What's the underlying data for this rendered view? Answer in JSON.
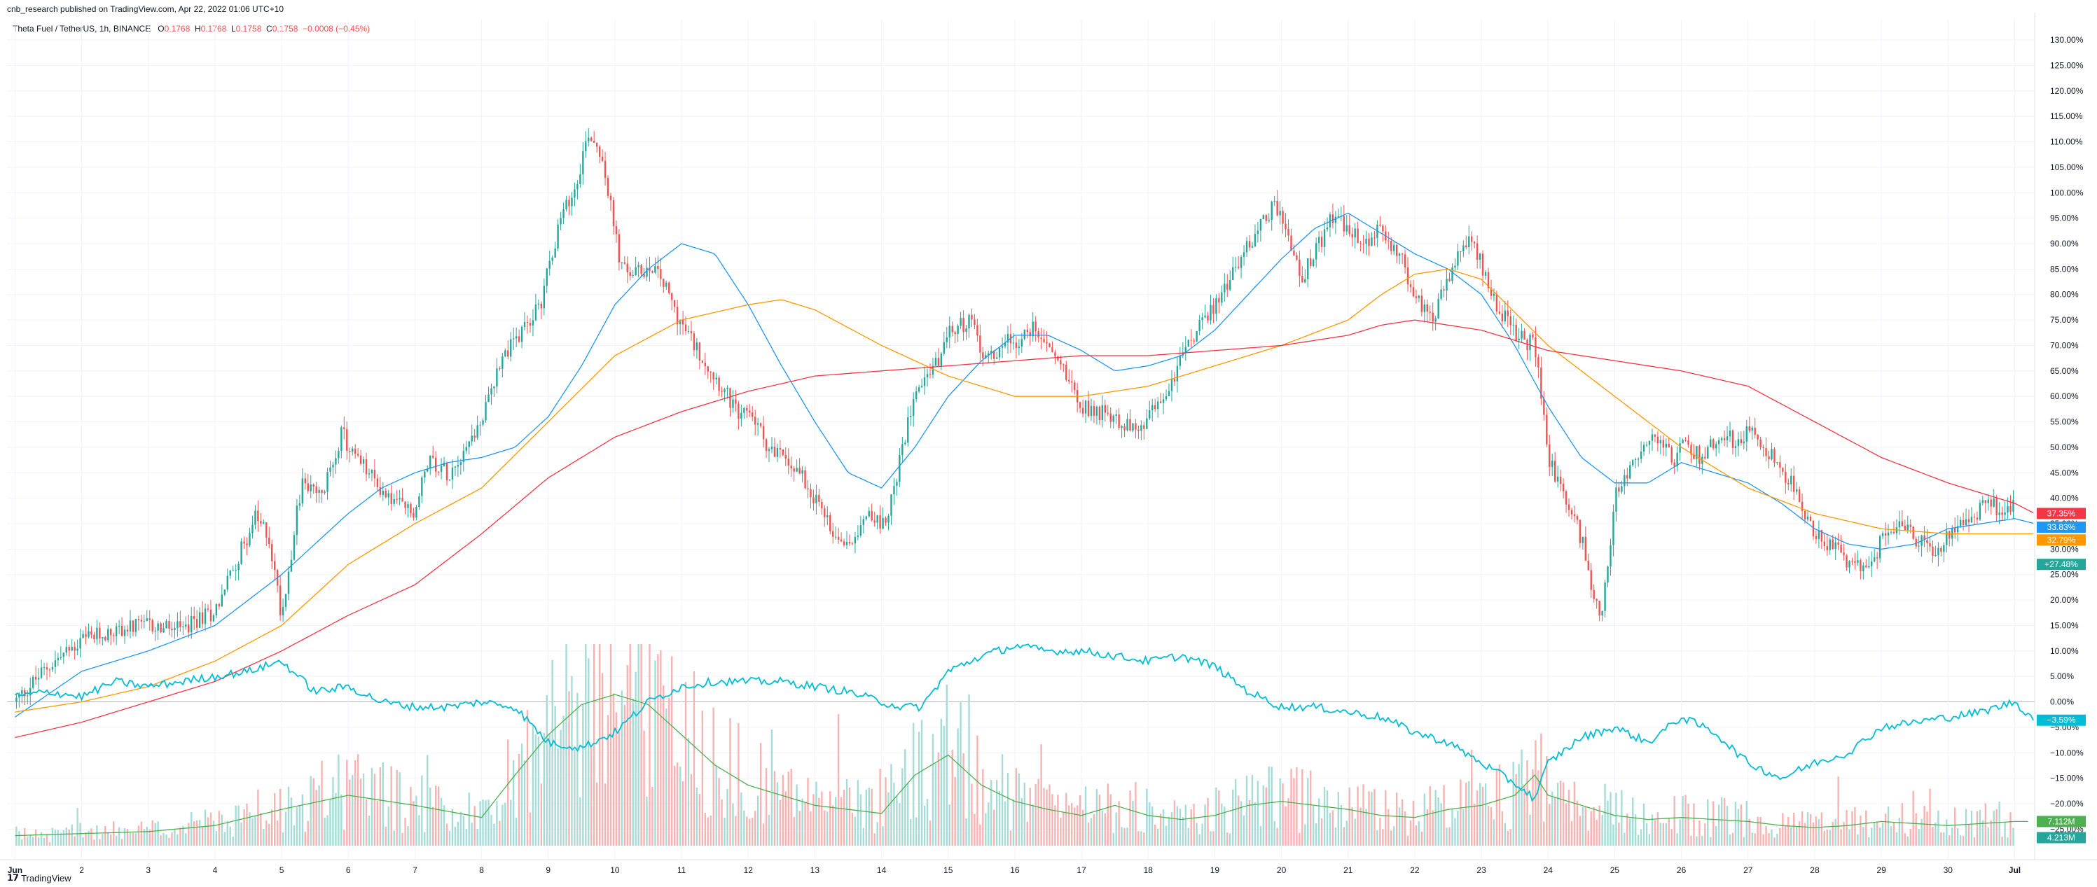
{
  "header": {
    "publisher": "cnb_research published on TradingView.com, Apr 22, 2022 01:06 UTC+10"
  },
  "legend": {
    "symbol": "Theta Fuel / TetherUS, 1h, BINANCE",
    "o_label": "O",
    "o_value": "0.1768",
    "h_label": "H",
    "h_value": "0.1768",
    "l_label": "L",
    "l_value": "0.1758",
    "c_label": "C",
    "c_value": "0.1758",
    "change": "−0.0008 (−0.45%)"
  },
  "footer": {
    "brand": "TradingView"
  },
  "colors": {
    "up": "#26a69a",
    "down": "#ef5350",
    "ma_fast": "#2196f3",
    "ma_mid": "#ff9800",
    "ma_slow": "#f23645",
    "compare": "#00bcd4",
    "vol_ma": "#4caf50",
    "grid": "#f0f3fa",
    "axis_text": "#131722"
  },
  "chart_data": {
    "type": "line",
    "title": "",
    "y_axis": {
      "unit": "percent",
      "ylim": [
        -31,
        134
      ],
      "ticks": [
        "130.00%",
        "125.00%",
        "120.00%",
        "115.00%",
        "110.00%",
        "105.00%",
        "100.00%",
        "95.00%",
        "90.00%",
        "85.00%",
        "80.00%",
        "75.00%",
        "70.00%",
        "65.00%",
        "60.00%",
        "55.00%",
        "50.00%",
        "45.00%",
        "40.00%",
        "35.00%",
        "30.00%",
        "25.00%",
        "20.00%",
        "15.00%",
        "10.00%",
        "5.00%",
        "0.00%",
        "−5.00%",
        "−10.00%",
        "−15.00%",
        "−20.00%",
        "−25.00%"
      ],
      "tick_values": [
        130,
        125,
        120,
        115,
        110,
        105,
        100,
        95,
        90,
        85,
        80,
        75,
        70,
        65,
        60,
        55,
        50,
        45,
        40,
        35,
        30,
        25,
        20,
        15,
        10,
        5,
        0,
        -5,
        -10,
        -15,
        -20,
        -25
      ]
    },
    "x_axis": {
      "labels": [
        "Jun",
        "2",
        "3",
        "4",
        "5",
        "6",
        "7",
        "8",
        "9",
        "10",
        "11",
        "12",
        "13",
        "14",
        "15",
        "16",
        "17",
        "18",
        "19",
        "20",
        "21",
        "22",
        "23",
        "24",
        "25",
        "26",
        "27",
        "28",
        "29",
        "30",
        "Jul"
      ],
      "label_days": [
        0,
        1,
        2,
        3,
        4,
        5,
        6,
        7,
        8,
        9,
        10,
        11,
        12,
        13,
        14,
        15,
        16,
        17,
        18,
        19,
        20,
        21,
        22,
        23,
        24,
        25,
        26,
        27,
        28,
        29,
        30
      ],
      "xlim": [
        -0.12,
        30.3
      ]
    },
    "price_anchors": {
      "day": [
        0,
        0.5,
        1,
        1.5,
        2,
        2.5,
        3,
        3.3,
        3.6,
        3.8,
        4,
        4.3,
        4.6,
        4.9,
        5,
        5.3,
        5.6,
        6,
        6.2,
        6.5,
        7,
        7.3,
        7.6,
        7.9,
        8,
        8.2,
        8.4,
        8.6,
        8.8,
        9,
        9.1,
        9.3,
        9.6,
        9.9,
        10,
        10.3,
        10.6,
        10.9,
        11,
        11.3,
        11.5,
        11.8,
        12,
        12.3,
        12.5,
        12.8,
        13,
        13.2,
        13.5,
        13.8,
        14,
        14.3,
        14.6,
        14.9,
        15,
        15.3,
        15.6,
        15.9,
        16,
        16.3,
        16.6,
        16.9,
        17,
        17.3,
        17.5,
        17.8,
        18,
        18.3,
        18.6,
        18.9,
        19,
        19.3,
        19.5,
        19.8,
        20,
        20.3,
        20.5,
        20.8,
        21,
        21.3,
        21.5,
        21.8,
        22,
        22.2,
        22.5,
        22.8,
        22.9,
        23,
        23.2,
        23.5,
        23.8,
        24,
        24.3,
        24.6,
        24.9,
        25,
        25.3,
        25.6,
        25.9,
        26,
        26.3,
        26.6,
        26.9,
        27,
        27.3,
        27.6,
        27.9,
        28,
        28.3,
        28.6,
        28.9,
        29,
        29.3,
        29.6,
        29.9,
        30
      ],
      "pct": [
        0,
        7,
        12,
        14,
        15,
        14,
        18,
        27,
        36,
        33,
        17,
        43,
        40,
        53,
        50,
        45,
        40,
        37,
        48,
        45,
        55,
        68,
        72,
        79,
        86,
        95,
        101,
        112,
        108,
        92,
        85,
        84,
        86,
        77,
        74,
        68,
        62,
        55,
        58,
        50,
        48,
        45,
        40,
        33,
        31,
        38,
        34,
        42,
        62,
        66,
        72,
        75,
        67,
        72,
        70,
        74,
        68,
        62,
        58,
        57,
        55,
        53,
        56,
        61,
        68,
        74,
        78,
        85,
        92,
        98,
        95,
        83,
        88,
        96,
        92,
        90,
        93,
        87,
        79,
        76,
        83,
        91,
        86,
        79,
        72,
        70,
        60,
        48,
        42,
        32,
        15,
        40,
        48,
        52,
        47,
        51,
        48,
        53,
        50,
        55,
        49,
        44,
        36,
        33,
        30,
        26,
        28,
        32,
        34,
        31,
        29,
        33,
        36,
        39,
        37,
        40,
        39,
        37,
        33,
        29,
        27
      ]
    },
    "series": [
      {
        "name": "",
        "role": "MA fast",
        "color": "#2196f3",
        "last_label": "33.83%",
        "day": [
          0,
          1,
          2,
          3,
          3.5,
          4,
          4.5,
          5,
          5.5,
          6,
          6.5,
          7,
          7.5,
          8,
          8.5,
          9,
          9.5,
          10,
          10.5,
          11,
          11.5,
          12,
          12.5,
          13,
          13.5,
          14,
          14.5,
          15,
          15.5,
          16,
          16.5,
          17,
          17.5,
          18,
          18.5,
          19,
          19.5,
          20,
          20.5,
          21,
          21.5,
          22,
          22.5,
          23,
          23.5,
          24,
          24.5,
          25,
          25.5,
          26,
          26.5,
          27,
          27.5,
          28,
          28.5,
          29,
          29.5,
          30,
          30.3
        ],
        "pct": [
          -3,
          6,
          10,
          15,
          20,
          25,
          31,
          37,
          42,
          45,
          47,
          48,
          50,
          56,
          66,
          78,
          85,
          90,
          88,
          78,
          66,
          55,
          45,
          42,
          50,
          60,
          67,
          72,
          72,
          69,
          65,
          66,
          68,
          73,
          80,
          87,
          93,
          96,
          92,
          88,
          85,
          80,
          70,
          58,
          48,
          43,
          43,
          47,
          45,
          43,
          39,
          34,
          31,
          30,
          31,
          34,
          35,
          36,
          35
        ]
      },
      {
        "name": "",
        "role": "MA mid",
        "color": "#ff9800",
        "last_label": "32.79%",
        "day": [
          0,
          1,
          2,
          3,
          4,
          5,
          6,
          7,
          8,
          9,
          10,
          11,
          11.5,
          12,
          13,
          14,
          15,
          16,
          17,
          18,
          19,
          20,
          20.5,
          21,
          21.5,
          22,
          23,
          24,
          25,
          26,
          27,
          28,
          29,
          30,
          30.3
        ],
        "pct": [
          -2,
          0,
          3,
          8,
          15,
          27,
          35,
          42,
          55,
          68,
          75,
          78,
          79,
          77,
          70,
          64,
          60,
          60,
          62,
          66,
          70,
          75,
          80,
          84,
          85,
          83,
          70,
          60,
          50,
          42,
          37,
          34,
          33,
          33,
          33
        ]
      },
      {
        "name": "",
        "role": "MA slow",
        "color": "#f23645",
        "last_label": "37.35%",
        "day": [
          0,
          1,
          2,
          3,
          4,
          5,
          6,
          7,
          8,
          9,
          10,
          11,
          12,
          13,
          14,
          15,
          16,
          17,
          18,
          19,
          20,
          20.5,
          21,
          21.5,
          22,
          23,
          24,
          25,
          26,
          27,
          28,
          29,
          30,
          30.3
        ],
        "pct": [
          -7,
          -4,
          0,
          4,
          10,
          17,
          23,
          33,
          44,
          52,
          57,
          61,
          64,
          65,
          66,
          67,
          68,
          68,
          69,
          70,
          72,
          74,
          75,
          74,
          73,
          69,
          67,
          65,
          62,
          55,
          48,
          43,
          39,
          37
        ]
      },
      {
        "name": "",
        "role": "compare",
        "color": "#00bcd4",
        "last_label": "−3.59%",
        "day": [
          0,
          0.5,
          1,
          1.5,
          2,
          2.5,
          3,
          3.5,
          4,
          4.5,
          5,
          5.5,
          6,
          6.5,
          7,
          7.5,
          8,
          8.5,
          9,
          9.5,
          10,
          10.5,
          11,
          11.5,
          12,
          12.5,
          13,
          13.3,
          13.6,
          14,
          14.5,
          15,
          15.5,
          16,
          16.5,
          17,
          17.5,
          18,
          18.5,
          19,
          19.5,
          20,
          20.5,
          21,
          21.5,
          22,
          22.5,
          22.8,
          23,
          23.5,
          24,
          24.5,
          25,
          25.5,
          26,
          26.5,
          27,
          27.5,
          28,
          28.5,
          29,
          29.5,
          30,
          30.3
        ],
        "pct": [
          1,
          2,
          1,
          4,
          3,
          4,
          5,
          6,
          8,
          2,
          3,
          0,
          -1,
          -1,
          0,
          -1,
          -8,
          -9,
          -6,
          0,
          3,
          4,
          4,
          4,
          3,
          2,
          0,
          -1,
          -1,
          6,
          9,
          11,
          10,
          10,
          9,
          8,
          9,
          7,
          2,
          -1,
          -1,
          -2,
          -3,
          -6,
          -8,
          -12,
          -16,
          -19,
          -12,
          -7,
          -5,
          -8,
          -3,
          -6,
          -12,
          -15,
          -12,
          -10,
          -5,
          -4,
          -3,
          -2,
          0,
          -3.6
        ]
      }
    ],
    "current_price_label": "+27.48%",
    "volume": {
      "label_1": "7.112M",
      "label_2": "4.213M",
      "ma_day": [
        0,
        1,
        2,
        3,
        4,
        5,
        6,
        7,
        7.5,
        8,
        8.5,
        9,
        9.5,
        10,
        10.5,
        11,
        11.5,
        12,
        12.5,
        13,
        13.5,
        14,
        14.5,
        15,
        15.5,
        16,
        16.5,
        17,
        17.5,
        18,
        18.5,
        19,
        19.5,
        20,
        20.5,
        21,
        21.5,
        22,
        22.5,
        22.8,
        23,
        23.5,
        24,
        24.5,
        25,
        25.5,
        26,
        26.5,
        27,
        27.5,
        28,
        28.5,
        29,
        29.5,
        30,
        30.3
      ],
      "ma_rel": [
        0.05,
        0.06,
        0.07,
        0.1,
        0.18,
        0.25,
        0.2,
        0.14,
        0.35,
        0.55,
        0.7,
        0.75,
        0.7,
        0.55,
        0.4,
        0.3,
        0.25,
        0.2,
        0.18,
        0.16,
        0.35,
        0.45,
        0.3,
        0.22,
        0.18,
        0.15,
        0.2,
        0.15,
        0.13,
        0.15,
        0.2,
        0.22,
        0.2,
        0.18,
        0.15,
        0.14,
        0.18,
        0.2,
        0.25,
        0.35,
        0.25,
        0.2,
        0.15,
        0.13,
        0.14,
        0.13,
        0.12,
        0.1,
        0.09,
        0.1,
        0.12,
        0.11,
        0.1,
        0.11,
        0.12,
        0.12
      ]
    }
  }
}
